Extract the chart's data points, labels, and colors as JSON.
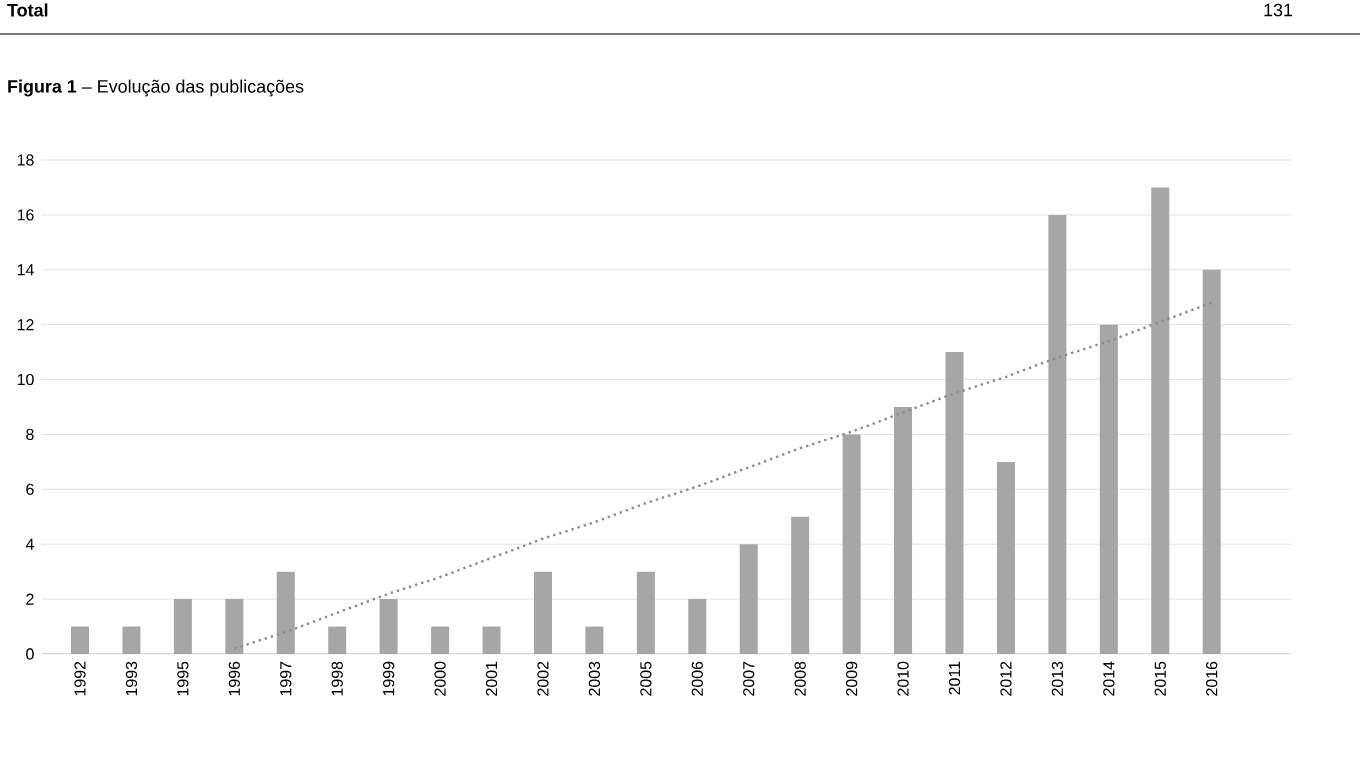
{
  "chart_data": {
    "type": "bar",
    "title": "**Figura 1** – Evolução das publicações",
    "annotations": [
      "Total",
      "131"
    ],
    "categories": [
      "1992",
      "1993",
      "1995",
      "1996",
      "1997",
      "1998",
      "1999",
      "2000",
      "2001",
      "2002",
      "2003",
      "2005",
      "2006",
      "2007",
      "2008",
      "2009",
      "2010",
      "2011",
      "2012",
      "2013",
      "2014",
      "2015",
      "2016"
    ],
    "series": [
      {
        "color": "#a6a6a6",
        "values": [
          1,
          1,
          2,
          2,
          3,
          1,
          2,
          1,
          1,
          3,
          1,
          3,
          2,
          4,
          5,
          8,
          9,
          11,
          7,
          16,
          12,
          17,
          14
        ]
      },
      {
        "type": "line",
        "color": "#8c8c8c",
        "line_style": "dotted",
        "marker": "none",
        "values": [
          null,
          null,
          null,
          0.2,
          0.8,
          1.5,
          2.2,
          2.8,
          3.5,
          4.2,
          4.8,
          5.5,
          6.1,
          6.8,
          7.5,
          8.1,
          8.8,
          9.5,
          10.1,
          10.8,
          11.4,
          12.1,
          12.8
        ]
      }
    ],
    "ylim": [
      0,
      18
    ],
    "yticks": [
      0,
      2,
      4,
      6,
      8,
      10,
      12,
      14,
      16,
      18
    ],
    "grid": "y"
  }
}
